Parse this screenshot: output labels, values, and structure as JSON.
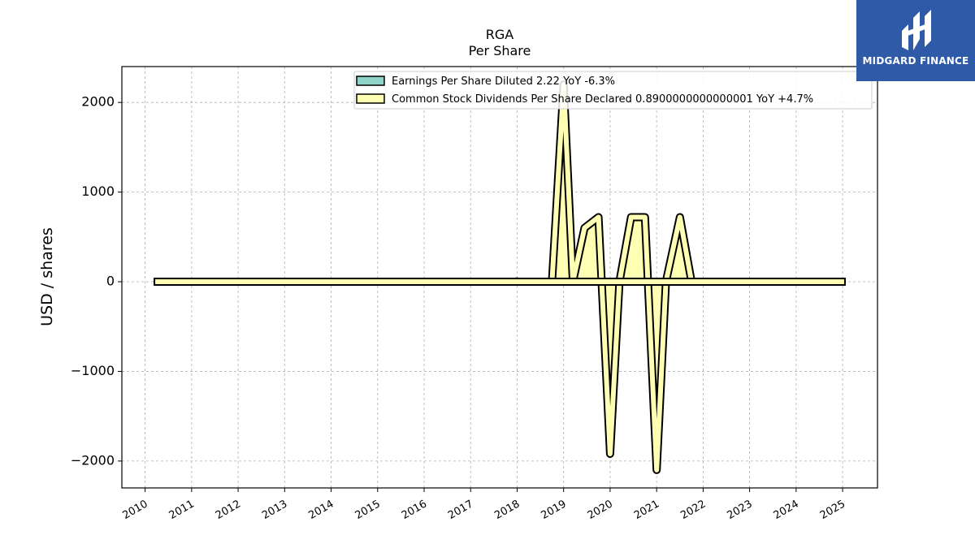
{
  "chart_data": {
    "type": "area",
    "title": "RGA",
    "subtitle": "Per  Share",
    "xlabel": "",
    "ylabel": "USD / shares",
    "ylim": [
      -2300,
      2400
    ],
    "xlim": [
      2009.5,
      2025.75
    ],
    "yticks": [
      2000,
      1000,
      0,
      -1000,
      -2000
    ],
    "ytick_labels": [
      "2000",
      "1000",
      "0",
      "−1000",
      "−2000"
    ],
    "xticks": [
      2010,
      2011,
      2012,
      2013,
      2014,
      2015,
      2016,
      2017,
      2018,
      2019,
      2020,
      2021,
      2022,
      2023,
      2024,
      2025
    ],
    "xtick_labels": [
      "2010",
      "2011",
      "2012",
      "2013",
      "2014",
      "2015",
      "2016",
      "2017",
      "2018",
      "2019",
      "2020",
      "2021",
      "2022",
      "2023",
      "2024",
      "2025"
    ],
    "grid": true,
    "legend_position": "top-center",
    "series": [
      {
        "name": "Earnings Per Share Diluted  2.22 YoY -6.3%",
        "color": "#8dd3c7",
        "points": [
          [
            2010.2,
            5
          ],
          [
            2012.0,
            4
          ],
          [
            2014.0,
            3
          ],
          [
            2016.0,
            8
          ],
          [
            2017.0,
            12
          ],
          [
            2017.75,
            15
          ],
          [
            2018.0,
            40
          ],
          [
            2018.25,
            12
          ],
          [
            2018.5,
            5
          ],
          [
            2018.75,
            10
          ],
          [
            2019.0,
            1950
          ],
          [
            2019.25,
            10
          ],
          [
            2019.5,
            8
          ],
          [
            2019.75,
            8
          ],
          [
            2020.0,
            10
          ],
          [
            2020.25,
            10
          ],
          [
            2020.5,
            30
          ],
          [
            2020.75,
            30
          ],
          [
            2021.0,
            10
          ],
          [
            2021.25,
            10
          ],
          [
            2021.5,
            550
          ],
          [
            2021.75,
            10
          ],
          [
            2022.0,
            8
          ],
          [
            2023.0,
            8
          ],
          [
            2024.0,
            8
          ],
          [
            2025.05,
            5
          ]
        ]
      },
      {
        "name": "Common Stock Dividends Per Share Declared  0.8900000000000001 YoY +4.7%",
        "color": "#ffffb3",
        "points": [
          [
            2010.2,
            0
          ],
          [
            2018.75,
            0
          ],
          [
            2019.0,
            2200
          ],
          [
            2019.2,
            0
          ],
          [
            2019.45,
            600
          ],
          [
            2019.75,
            720
          ],
          [
            2020.0,
            -1920
          ],
          [
            2020.2,
            0
          ],
          [
            2020.45,
            720
          ],
          [
            2020.75,
            720
          ],
          [
            2021.0,
            -2100
          ],
          [
            2021.2,
            0
          ],
          [
            2021.5,
            720
          ],
          [
            2021.75,
            0
          ],
          [
            2022.0,
            0
          ],
          [
            2025.05,
            0
          ]
        ]
      }
    ]
  },
  "logo": {
    "text": "MIDGARD FINANCE"
  }
}
